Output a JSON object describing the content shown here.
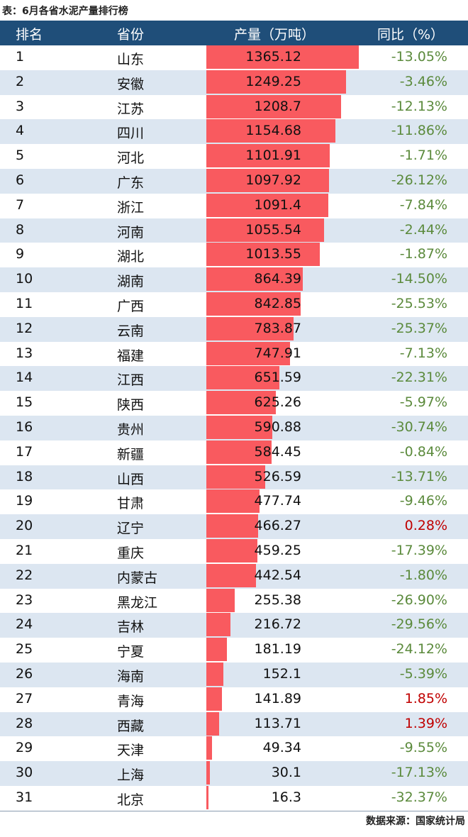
{
  "title": "表：6月各省水泥产量排行榜",
  "source": "数据来源：国家统计局",
  "colors": {
    "header": "#1f4e79",
    "bar": "#f95a5f",
    "negative": "#5b8a3c",
    "positive": "#c00000",
    "alt_row": "#dce6f1"
  },
  "chart_data": {
    "type": "table",
    "columns": [
      "排名",
      "省份",
      "产量（万吨）",
      "同比（%）"
    ],
    "rows": [
      [
        "1",
        "山东",
        "1365.12",
        "-13.05%"
      ],
      [
        "2",
        "安徽",
        "1249.25",
        "-3.46%"
      ],
      [
        "3",
        "江苏",
        "1208.7",
        "-12.13%"
      ],
      [
        "4",
        "四川",
        "1154.68",
        "-11.86%"
      ],
      [
        "5",
        "河北",
        "1101.91",
        "-1.71%"
      ],
      [
        "6",
        "广东",
        "1097.92",
        "-26.12%"
      ],
      [
        "7",
        "浙江",
        "1091.4",
        "-7.84%"
      ],
      [
        "8",
        "河南",
        "1055.54",
        "-2.44%"
      ],
      [
        "9",
        "湖北",
        "1013.55",
        "-1.87%"
      ],
      [
        "10",
        "湖南",
        "864.39",
        "-14.50%"
      ],
      [
        "11",
        "广西",
        "842.85",
        "-25.53%"
      ],
      [
        "12",
        "云南",
        "783.87",
        "-25.37%"
      ],
      [
        "13",
        "福建",
        "747.91",
        "-7.13%"
      ],
      [
        "14",
        "江西",
        "651.59",
        "-22.31%"
      ],
      [
        "15",
        "陕西",
        "625.26",
        "-5.97%"
      ],
      [
        "16",
        "贵州",
        "590.88",
        "-30.74%"
      ],
      [
        "17",
        "新疆",
        "584.45",
        "-0.84%"
      ],
      [
        "18",
        "山西",
        "526.59",
        "-13.71%"
      ],
      [
        "19",
        "甘肃",
        "477.74",
        "-9.46%"
      ],
      [
        "20",
        "辽宁",
        "466.27",
        "0.28%"
      ],
      [
        "21",
        "重庆",
        "459.25",
        "-17.39%"
      ],
      [
        "22",
        "内蒙古",
        "442.54",
        "-1.80%"
      ],
      [
        "23",
        "黑龙江",
        "255.38",
        "-26.90%"
      ],
      [
        "24",
        "吉林",
        "216.72",
        "-29.56%"
      ],
      [
        "25",
        "宁夏",
        "181.19",
        "-24.12%"
      ],
      [
        "26",
        "海南",
        "152.1",
        "-5.39%"
      ],
      [
        "27",
        "青海",
        "141.89",
        "1.85%"
      ],
      [
        "28",
        "西藏",
        "113.71",
        "1.39%"
      ],
      [
        "29",
        "天津",
        "49.34",
        "-9.55%"
      ],
      [
        "30",
        "上海",
        "30.1",
        "-17.13%"
      ],
      [
        "31",
        "北京",
        "16.3",
        "-32.37%"
      ]
    ],
    "bar_column": "产量（万吨）"
  }
}
